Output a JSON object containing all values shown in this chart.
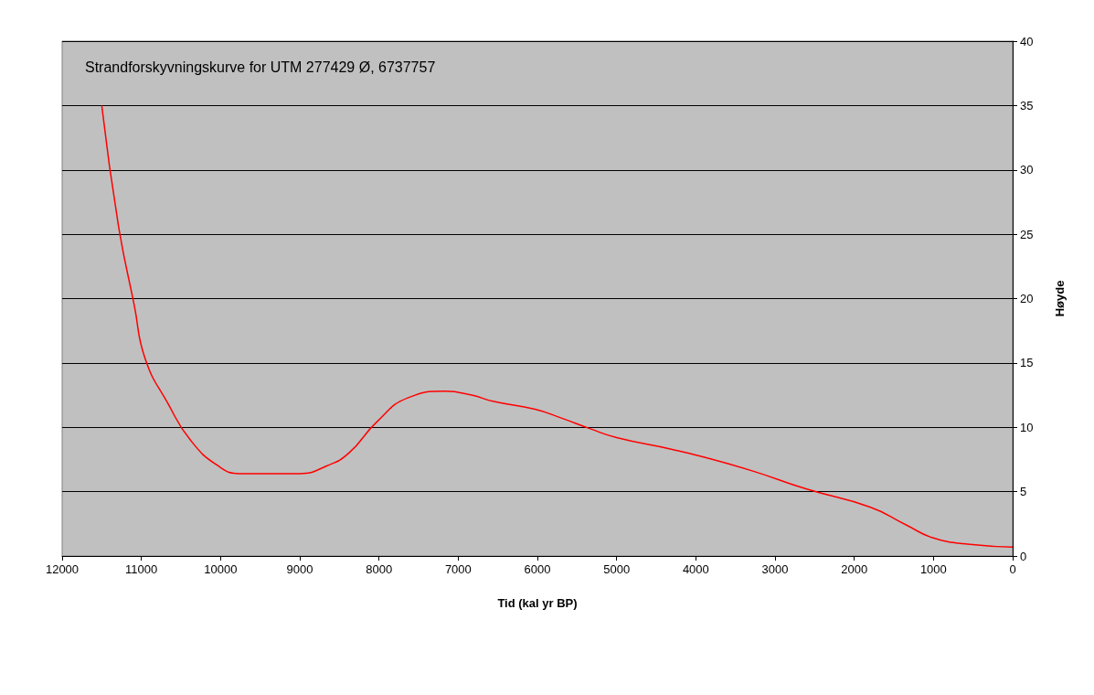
{
  "chart_data": {
    "type": "line",
    "title": "Strandforskyvningskurve for UTM 277429 Ø, 6737757",
    "xlabel": "Tid (kal yr BP)",
    "ylabel": "Høyde",
    "x": [
      11500,
      11290,
      11090,
      10950,
      10660,
      10380,
      10030,
      9750,
      9350,
      9000,
      8660,
      8380,
      8030,
      7630,
      7170,
      6830,
      6550,
      6030,
      5690,
      5340,
      5000,
      4310,
      3970,
      3280,
      2600,
      1800,
      1340,
      1000,
      540,
      0
    ],
    "series": [
      {
        "color": "#ff0000",
        "values": [
          35,
          25.7,
          19.5,
          15.3,
          11.8,
          9.0,
          7.0,
          6.4,
          6.4,
          6.4,
          7.0,
          8.0,
          10.4,
          12.3,
          12.8,
          12.5,
          12.0,
          11.4,
          10.7,
          9.9,
          9.2,
          8.3,
          7.8,
          6.6,
          5.2,
          3.8,
          2.4,
          1.4,
          0.9,
          0.7
        ]
      }
    ],
    "xlim": [
      12000,
      0
    ],
    "xticks": [
      0,
      1000,
      2000,
      3000,
      4000,
      5000,
      6000,
      7000,
      8000,
      9000,
      10000,
      11000,
      12000
    ],
    "ylim": [
      0,
      40
    ],
    "yticks": [
      0,
      5,
      10,
      15,
      20,
      25,
      30,
      35,
      40
    ],
    "grid": "y",
    "marker": "none",
    "line_style": "solid"
  }
}
